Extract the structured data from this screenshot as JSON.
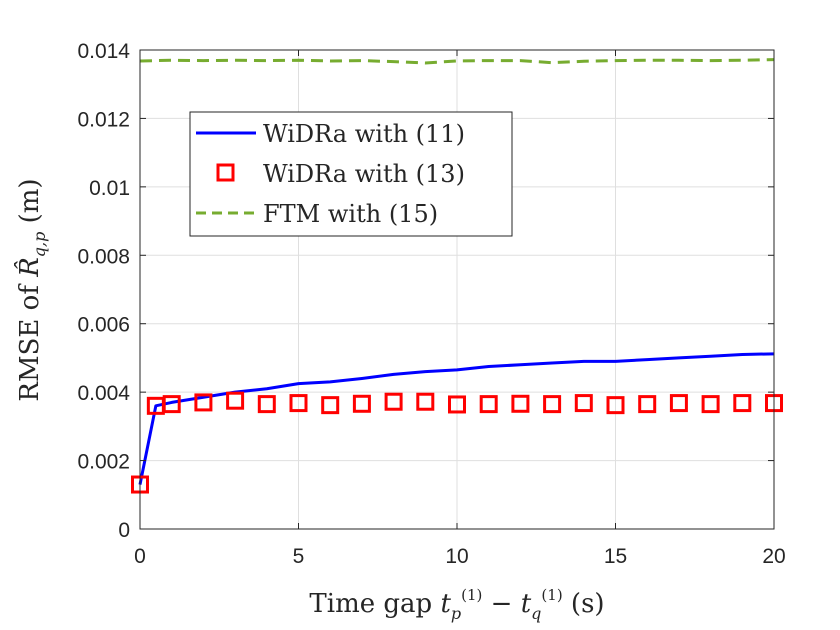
{
  "chart_data": {
    "type": "line",
    "title": "",
    "xlabel": "Time gap t_p^(1) − t_q^(1) (s)",
    "ylabel": "RMSE of R̂_{q,p} (m)",
    "xlim": [
      0,
      20
    ],
    "ylim": [
      0,
      0.014
    ],
    "xticks": [
      0,
      5,
      10,
      15,
      20
    ],
    "xtick_labels": [
      "0",
      "5",
      "10",
      "15",
      "20"
    ],
    "yticks": [
      0,
      0.002,
      0.004,
      0.006,
      0.008,
      0.01,
      0.012,
      0.014
    ],
    "ytick_labels": [
      "0",
      "0.002",
      "0.004",
      "0.006",
      "0.008",
      "0.01",
      "0.012",
      "0.014"
    ],
    "grid": true,
    "legend_position": "upper-left",
    "series": [
      {
        "name": "WiDRa with (11)",
        "style": "solid-line",
        "color": "#0000ff",
        "x": [
          0,
          0.5,
          1,
          2,
          3,
          4,
          5,
          6,
          7,
          8,
          9,
          10,
          11,
          12,
          13,
          14,
          15,
          16,
          17,
          18,
          19,
          20
        ],
        "y": [
          0.0013,
          0.0036,
          0.0037,
          0.00385,
          0.004,
          0.0041,
          0.00425,
          0.0043,
          0.0044,
          0.00452,
          0.0046,
          0.00465,
          0.00475,
          0.0048,
          0.00485,
          0.0049,
          0.0049,
          0.00495,
          0.005,
          0.00505,
          0.0051,
          0.00512
        ]
      },
      {
        "name": "WiDRa with (13)",
        "style": "square-markers",
        "color": "#ff0000",
        "x": [
          0,
          0.5,
          1,
          2,
          3,
          4,
          5,
          6,
          7,
          8,
          9,
          10,
          11,
          12,
          13,
          14,
          15,
          16,
          17,
          18,
          19,
          20
        ],
        "y": [
          0.0013,
          0.0036,
          0.00365,
          0.0037,
          0.00375,
          0.00365,
          0.00368,
          0.00362,
          0.00366,
          0.00372,
          0.00372,
          0.00364,
          0.00365,
          0.00366,
          0.00365,
          0.00368,
          0.00362,
          0.00365,
          0.00368,
          0.00365,
          0.00368,
          0.00368
        ]
      },
      {
        "name": "FTM with (15)",
        "style": "dashed-line",
        "color": "#77ac30",
        "x": [
          0,
          1,
          2,
          3,
          4,
          5,
          6,
          7,
          8,
          9,
          10,
          11,
          12,
          13,
          14,
          15,
          16,
          17,
          18,
          19,
          20
        ],
        "y": [
          0.01368,
          0.0137,
          0.01369,
          0.0137,
          0.01369,
          0.0137,
          0.01368,
          0.01369,
          0.01366,
          0.01362,
          0.01368,
          0.01369,
          0.01369,
          0.01363,
          0.01367,
          0.01369,
          0.0137,
          0.0137,
          0.01369,
          0.0137,
          0.01372
        ]
      }
    ]
  }
}
